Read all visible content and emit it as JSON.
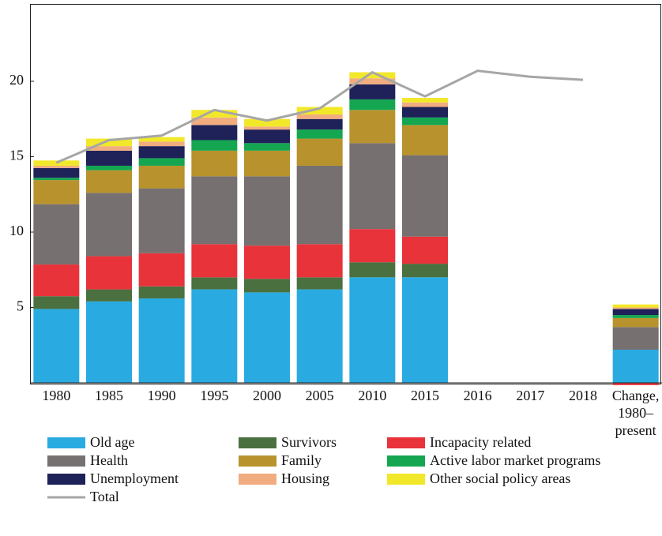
{
  "chart_data": {
    "type": "bar",
    "categories": [
      "1980",
      "1985",
      "1990",
      "1995",
      "2000",
      "2005",
      "2010",
      "2015",
      "2016",
      "2017",
      "2018",
      "Change, 1980–present"
    ],
    "ylim": [
      0,
      25
    ],
    "yticks": [
      5,
      10,
      15,
      20
    ],
    "grid": false,
    "legend": "bottom",
    "series": [
      {
        "name": "Old age",
        "color": "#29abe2",
        "values": [
          4.9,
          5.4,
          5.6,
          6.2,
          6.0,
          6.2,
          7.0,
          7.0,
          null,
          null,
          null,
          2.2
        ]
      },
      {
        "name": "Survivors",
        "color": "#4a7040",
        "values": [
          0.85,
          0.8,
          0.8,
          0.8,
          0.9,
          0.8,
          1.0,
          0.9,
          null,
          null,
          null,
          0
        ]
      },
      {
        "name": "Incapacity related",
        "color": "#e8333a",
        "values": [
          2.1,
          2.2,
          2.2,
          2.2,
          2.2,
          2.2,
          2.2,
          1.8,
          null,
          null,
          null,
          -0.15
        ]
      },
      {
        "name": "Health",
        "color": "#767070",
        "values": [
          4.0,
          4.2,
          4.3,
          4.5,
          4.6,
          5.2,
          5.7,
          5.4,
          null,
          null,
          null,
          1.5
        ]
      },
      {
        "name": "Family",
        "color": "#b8922c",
        "values": [
          1.6,
          1.5,
          1.5,
          1.7,
          1.7,
          1.8,
          2.2,
          2.0,
          null,
          null,
          null,
          0.6
        ]
      },
      {
        "name": "Active labor market programs",
        "color": "#14a650",
        "values": [
          0.15,
          0.3,
          0.5,
          0.7,
          0.5,
          0.6,
          0.7,
          0.5,
          null,
          null,
          null,
          0.2
        ]
      },
      {
        "name": "Unemployment",
        "color": "#1f2259",
        "values": [
          0.65,
          1.0,
          0.8,
          1.0,
          0.9,
          0.7,
          1.0,
          0.7,
          null,
          null,
          null,
          0.4
        ]
      },
      {
        "name": "Housing",
        "color": "#f1ad7f",
        "values": [
          0.15,
          0.3,
          0.3,
          0.5,
          0.2,
          0.3,
          0.4,
          0.3,
          null,
          null,
          null,
          0.1
        ]
      },
      {
        "name": "Other social policy areas",
        "color": "#f2e82a",
        "values": [
          0.35,
          0.5,
          0.3,
          0.5,
          0.5,
          0.5,
          0.4,
          0.3,
          null,
          null,
          null,
          0.2
        ]
      },
      {
        "name": "Total",
        "color": "#a6a6a6",
        "type": "line",
        "values": [
          14.6,
          16.1,
          16.4,
          18.1,
          17.4,
          18.2,
          20.6,
          19.0,
          20.7,
          20.3,
          20.1,
          null
        ]
      }
    ]
  }
}
